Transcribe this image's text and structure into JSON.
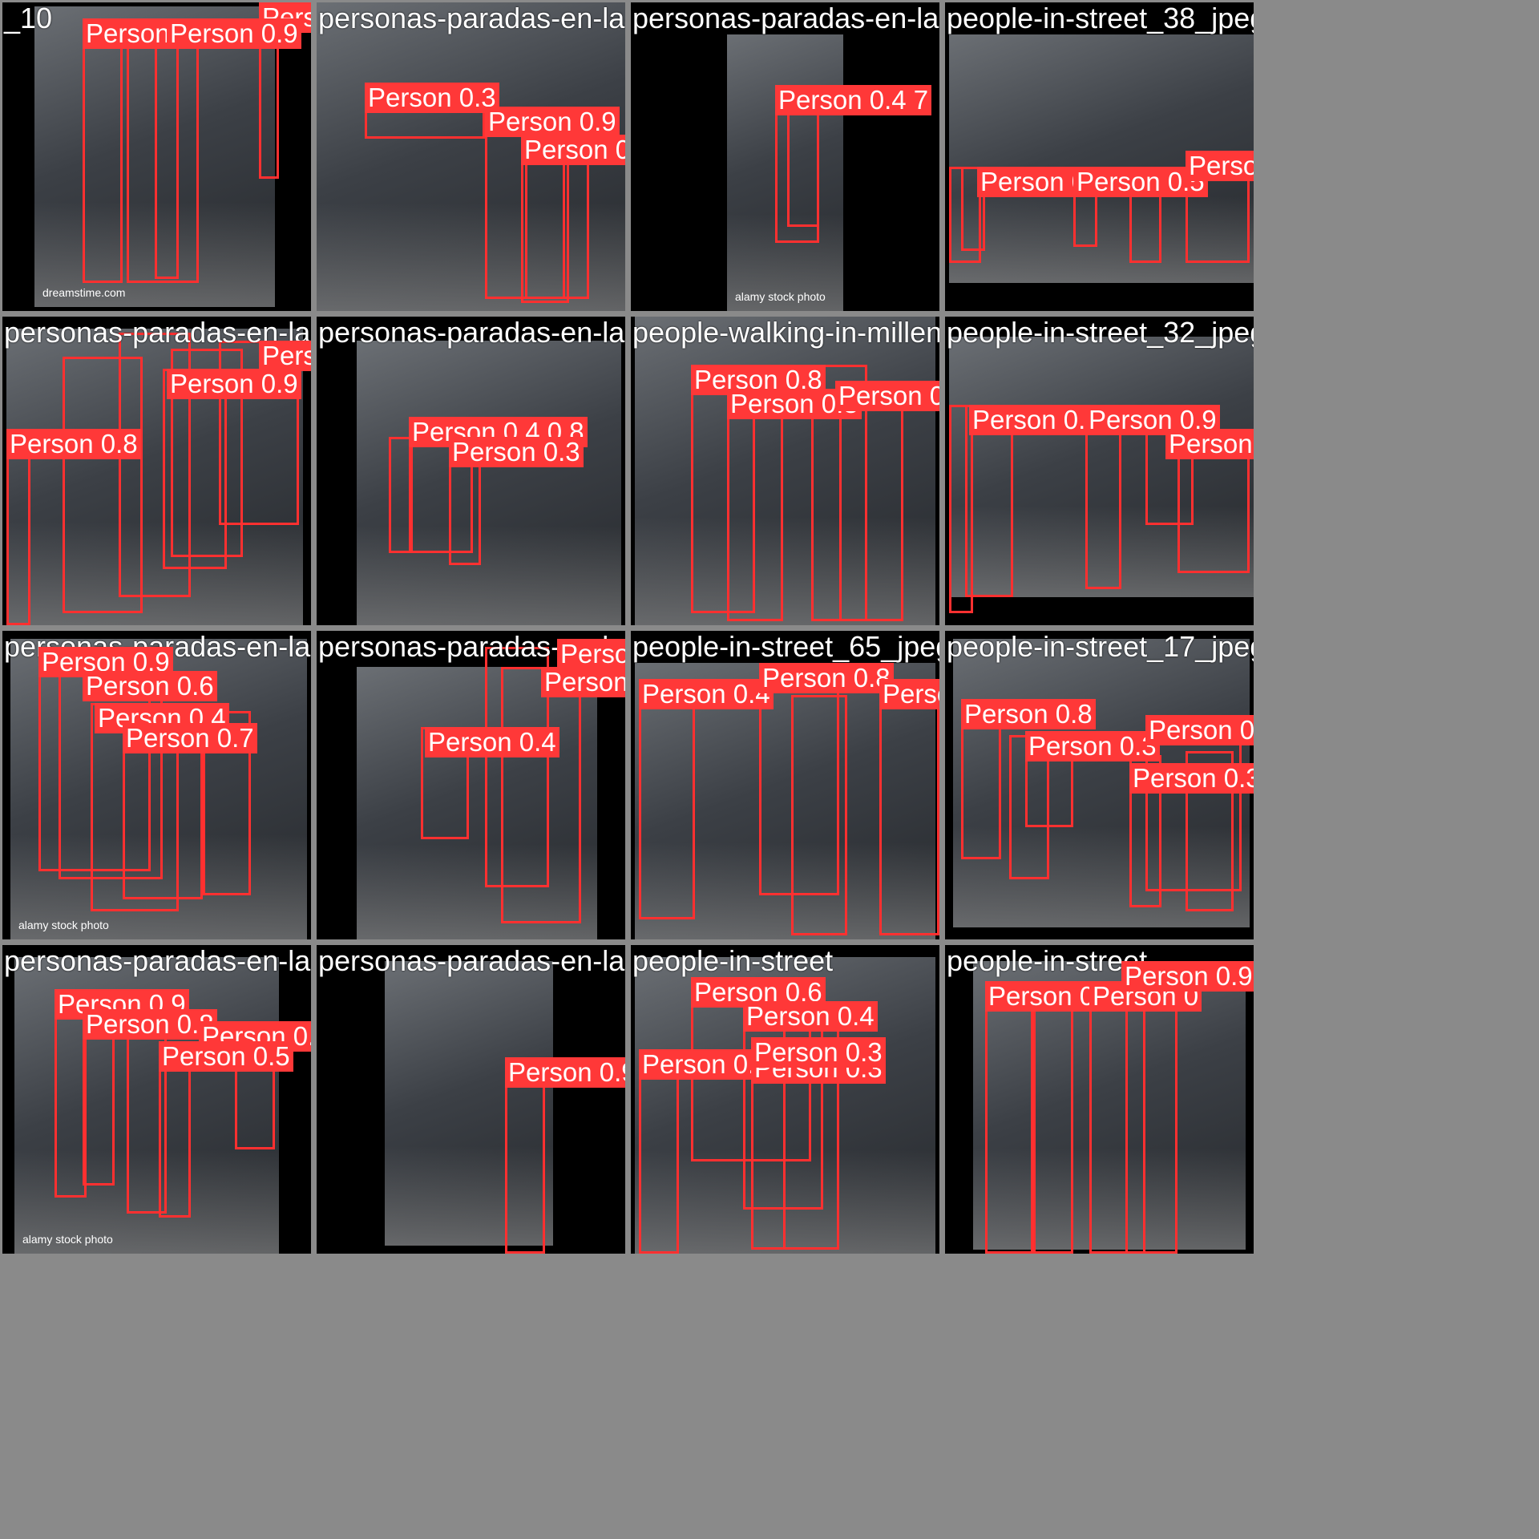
{
  "tiles": [
    {
      "name": "_10",
      "watermark": "dreamstime.com",
      "labels": [
        "Person 0.9",
        "Person 0.9",
        "Person 0.4"
      ]
    },
    {
      "name": "personas-paradas-en-la-calle",
      "labels": [
        "Person 0.3",
        "Person 0.9",
        "Person 0.9"
      ]
    },
    {
      "name": "personas-paradas-en-la-calle",
      "watermark": "alamy stock photo",
      "labels": [
        "Person 0.4 7"
      ]
    },
    {
      "name": "people-in-street_38_jpeg_jpg",
      "labels": [
        "Person 0",
        "Person 0.5",
        "Person 0"
      ]
    },
    {
      "name": "personas-paradas-en-la-calle",
      "labels": [
        "Person 0.8",
        "Person 0.7",
        "Person 0.9",
        "Person 0.8"
      ]
    },
    {
      "name": "personas-paradas-en-la-calle",
      "labels": [
        "Person 0.4 0.8",
        "Person 0.3"
      ]
    },
    {
      "name": "people-walking-in-millennium-park",
      "labels": [
        "Person 0.8",
        "Person 0.8",
        "Person 0.9"
      ]
    },
    {
      "name": "people-in-street_32_jpeg_jpg",
      "labels": [
        "Person 0.9",
        "Person 0.9",
        "Person"
      ]
    },
    {
      "name": "personas-paradas-en-la-calle",
      "watermark": "alamy stock photo",
      "labels": [
        "Person 0.9",
        "Person 0.6",
        "Person 0.4",
        "Person 0.7"
      ]
    },
    {
      "name": "personas-paradas-en-la-calle",
      "labels": [
        "Person 0.8",
        "Person 0.7",
        "Person 0.4"
      ]
    },
    {
      "name": "people-in-street_65_jpeg_jpg",
      "labels": [
        "Person 0.4",
        "Person 0.8",
        "Person 0.4"
      ]
    },
    {
      "name": "people-in-street_17_jpeg_jpg",
      "labels": [
        "Person 0.8",
        "Person 0.3",
        "Person 0.9",
        "Person 0.3"
      ]
    },
    {
      "name": "personas-paradas-en-la-calle",
      "watermark": "alamy stock photo",
      "labels": [
        "Person 0.9",
        "Person 0.8",
        "Person 0.3",
        "Person 0.5",
        "0.8"
      ]
    },
    {
      "name": "personas-paradas-en-la-calle",
      "labels": [
        "Person 0.9"
      ]
    },
    {
      "name": "people-in-street",
      "labels": [
        "Person 0.8",
        "Person 0.6",
        "Person 0.4",
        "Person 0.3",
        "Person 0.3"
      ]
    },
    {
      "name": "people-in-street",
      "labels": [
        "Person 0.9",
        "Person 0.9",
        "Person 0"
      ]
    }
  ],
  "colors": {
    "box": "#ff3030",
    "label_bg": "#ff3838",
    "border": "#8a8a8a"
  }
}
